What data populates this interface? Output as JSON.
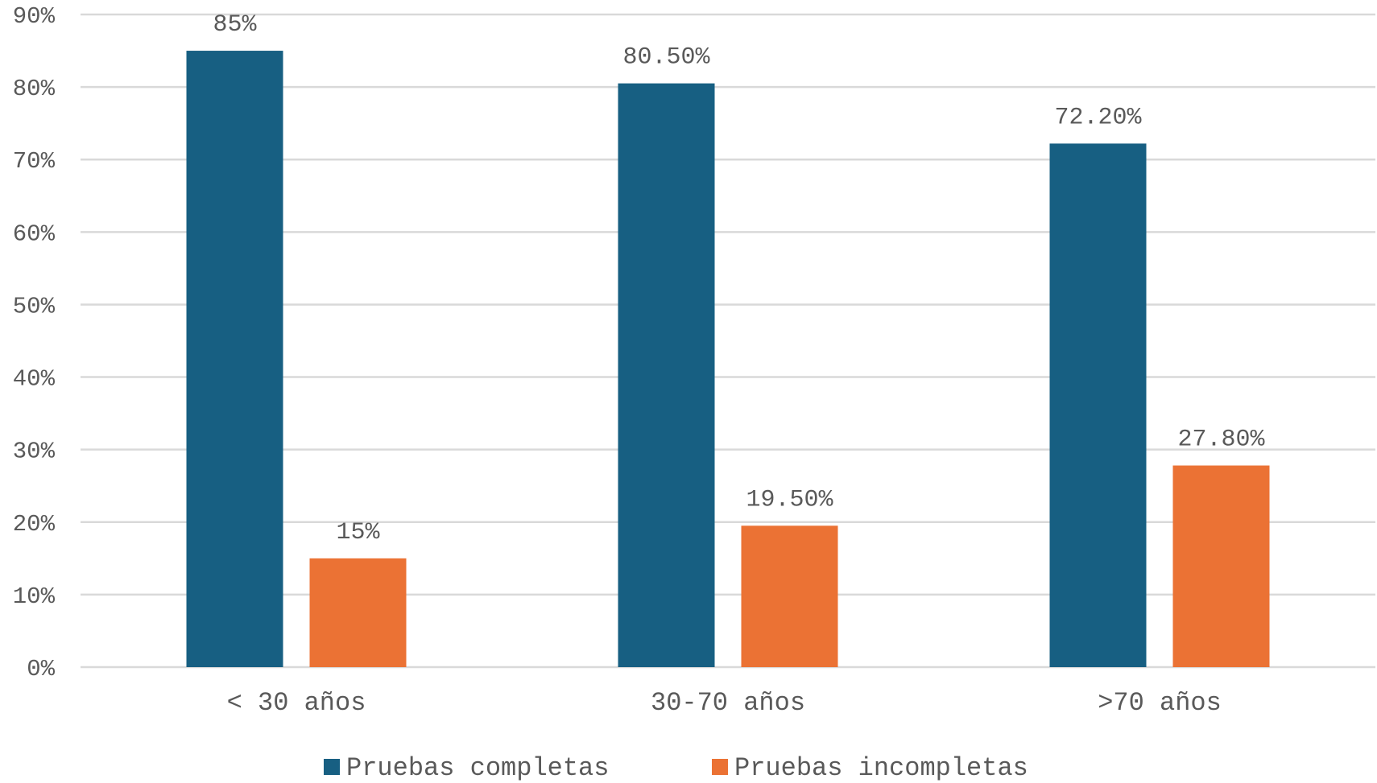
{
  "chart_data": {
    "type": "bar",
    "categories": [
      "< 30 años",
      "30-70 años",
      ">70 años"
    ],
    "series": [
      {
        "name": "Pruebas completas",
        "values": [
          85,
          80.5,
          72.2
        ],
        "labels": [
          "85%",
          "80.50%",
          "72.20%"
        ],
        "color": "#175f82"
      },
      {
        "name": "Pruebas incompletas",
        "values": [
          15,
          19.5,
          27.8
        ],
        "labels": [
          "15%",
          "19.50%",
          "27.80%"
        ],
        "color": "#eb7234"
      }
    ],
    "ylim": [
      0,
      90
    ],
    "yticks": [
      0,
      10,
      20,
      30,
      40,
      50,
      60,
      70,
      80,
      90
    ],
    "ytick_labels": [
      "0%",
      "10%",
      "20%",
      "30%",
      "40%",
      "50%",
      "60%",
      "70%",
      "80%",
      "90%"
    ],
    "grid": true,
    "legend": "bottom",
    "gridline_color": "#d9d9d9",
    "text_color": "#595959"
  }
}
